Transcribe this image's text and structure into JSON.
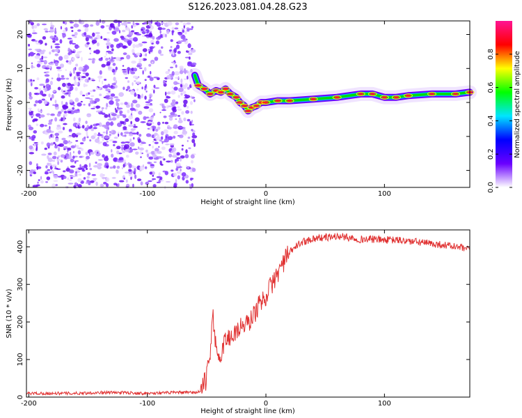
{
  "title": "S126.2023.081.04.28.G23",
  "chart_data": [
    {
      "type": "heatmap",
      "xlabel": "Height of straight line (km)",
      "ylabel": "Frequency (Hz)",
      "xlim": [
        -202,
        172
      ],
      "ylim": [
        -25,
        24
      ],
      "xticks": [
        -200,
        -100,
        0,
        100
      ],
      "yticks": [
        -20,
        -10,
        0,
        10,
        20
      ],
      "colorbar": {
        "label": "Normalized spectral amplitude",
        "range": [
          0,
          1
        ],
        "ticks": [
          "0.0",
          "0.2",
          "0.4",
          "0.6",
          "0.8"
        ],
        "colormap": [
          "#ffffff",
          "#6a00ff",
          "#0000ff",
          "#00e5ff",
          "#00ff00",
          "#ffff00",
          "#ff0000",
          "#ff1493"
        ]
      },
      "noise_region_x": [
        -200,
        -60
      ],
      "ridge": [
        {
          "x": -60,
          "y": 8
        },
        {
          "x": -57,
          "y": 5
        },
        {
          "x": -52,
          "y": 4
        },
        {
          "x": -47,
          "y": 2.5
        },
        {
          "x": -42,
          "y": 3.5
        },
        {
          "x": -38,
          "y": 3
        },
        {
          "x": -34,
          "y": 4
        },
        {
          "x": -30,
          "y": 2.5
        },
        {
          "x": -25,
          "y": 1.5
        },
        {
          "x": -22,
          "y": 0
        },
        {
          "x": -18,
          "y": -1
        },
        {
          "x": -15,
          "y": -2.5
        },
        {
          "x": -12,
          "y": -1.5
        },
        {
          "x": -8,
          "y": -1
        },
        {
          "x": -4,
          "y": 0
        },
        {
          "x": 0,
          "y": 0
        },
        {
          "x": 10,
          "y": 0.5
        },
        {
          "x": 20,
          "y": 0.5
        },
        {
          "x": 40,
          "y": 1
        },
        {
          "x": 60,
          "y": 1.5
        },
        {
          "x": 80,
          "y": 2.5
        },
        {
          "x": 90,
          "y": 2.5
        },
        {
          "x": 100,
          "y": 1.5
        },
        {
          "x": 110,
          "y": 1.5
        },
        {
          "x": 120,
          "y": 2
        },
        {
          "x": 140,
          "y": 2.5
        },
        {
          "x": 160,
          "y": 2.5
        },
        {
          "x": 172,
          "y": 3
        }
      ]
    },
    {
      "type": "line",
      "xlabel": "Height of straight line (km)",
      "ylabel": "SNR (10 * v/v)",
      "xlim": [
        -202,
        172
      ],
      "ylim": [
        0,
        445
      ],
      "xticks": [
        -200,
        -100,
        0,
        100
      ],
      "yticks": [
        0,
        100,
        200,
        300,
        400
      ],
      "color": "#e03030",
      "series": [
        {
          "x": [
            -202,
            -180,
            -160,
            -140,
            -120,
            -100,
            -80,
            -60,
            -55,
            -50,
            -47,
            -45,
            -43,
            -41,
            -39,
            -35,
            -30,
            -25,
            -20,
            -15,
            -10,
            -5,
            0,
            5,
            10,
            15,
            20,
            25,
            30,
            40,
            50,
            60,
            70,
            80,
            90,
            100,
            110,
            120,
            130,
            140,
            150,
            160,
            172
          ],
          "y": [
            10,
            10,
            10,
            12,
            12,
            10,
            12,
            12,
            15,
            50,
            120,
            230,
            160,
            90,
            100,
            150,
            160,
            175,
            190,
            195,
            220,
            250,
            270,
            300,
            330,
            360,
            385,
            400,
            412,
            422,
            425,
            428,
            425,
            420,
            420,
            418,
            418,
            415,
            412,
            408,
            405,
            400,
            392
          ]
        }
      ]
    }
  ]
}
